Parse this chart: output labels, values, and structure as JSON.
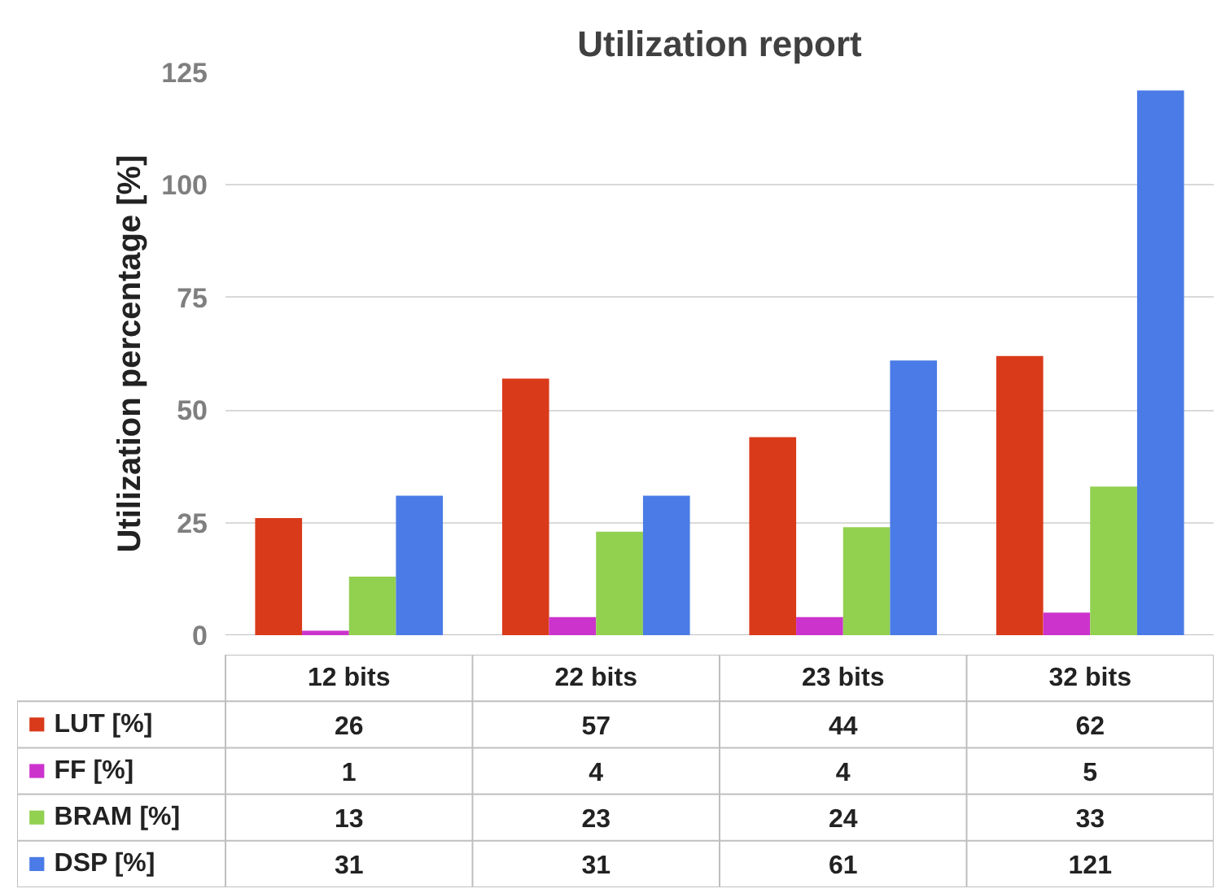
{
  "chart_data": {
    "type": "bar",
    "title": "Utilization report",
    "ylabel": "Utilization percentage [%]",
    "categories": [
      "12 bits",
      "22 bits",
      "23 bits",
      "32 bits"
    ],
    "series": [
      {
        "name": "LUT [%]",
        "color": "#d93a1a",
        "values": [
          26,
          57,
          44,
          62
        ]
      },
      {
        "name": "FF [%]",
        "color": "#cc33cc",
        "values": [
          1,
          4,
          4,
          5
        ]
      },
      {
        "name": "BRAM [%]",
        "color": "#92d050",
        "values": [
          13,
          23,
          24,
          33
        ]
      },
      {
        "name": "DSP [%]",
        "color": "#4a7be6",
        "values": [
          31,
          31,
          61,
          121
        ]
      }
    ],
    "ylim": [
      0,
      125
    ],
    "yticks": [
      0,
      25,
      50,
      75,
      100,
      125
    ],
    "grid": "y",
    "legend": "bottom",
    "data_labels": true
  }
}
